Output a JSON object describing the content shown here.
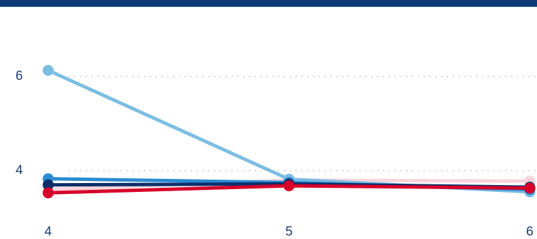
{
  "chart_data": {
    "type": "line",
    "x": [
      4,
      5,
      6
    ],
    "series": [
      {
        "color": "#f8d3da",
        "values": [
          3.6,
          3.8,
          3.78
        ]
      },
      {
        "color": "#7bbde3",
        "values": [
          6.13,
          3.82,
          3.55
        ]
      },
      {
        "color": "#2a8bd0",
        "values": [
          3.83,
          3.75,
          3.6
        ]
      },
      {
        "color": "#0c2f6b",
        "values": [
          3.7,
          3.72,
          3.65
        ]
      },
      {
        "color": "#d7002a",
        "values": [
          3.53,
          3.68,
          3.63
        ]
      }
    ],
    "xlim": [
      3.8,
      6.03
    ],
    "xticks": [
      4,
      5,
      6
    ],
    "ylim": [
      3,
      7
    ],
    "yticks": [
      4,
      6
    ],
    "grid": true
  }
}
